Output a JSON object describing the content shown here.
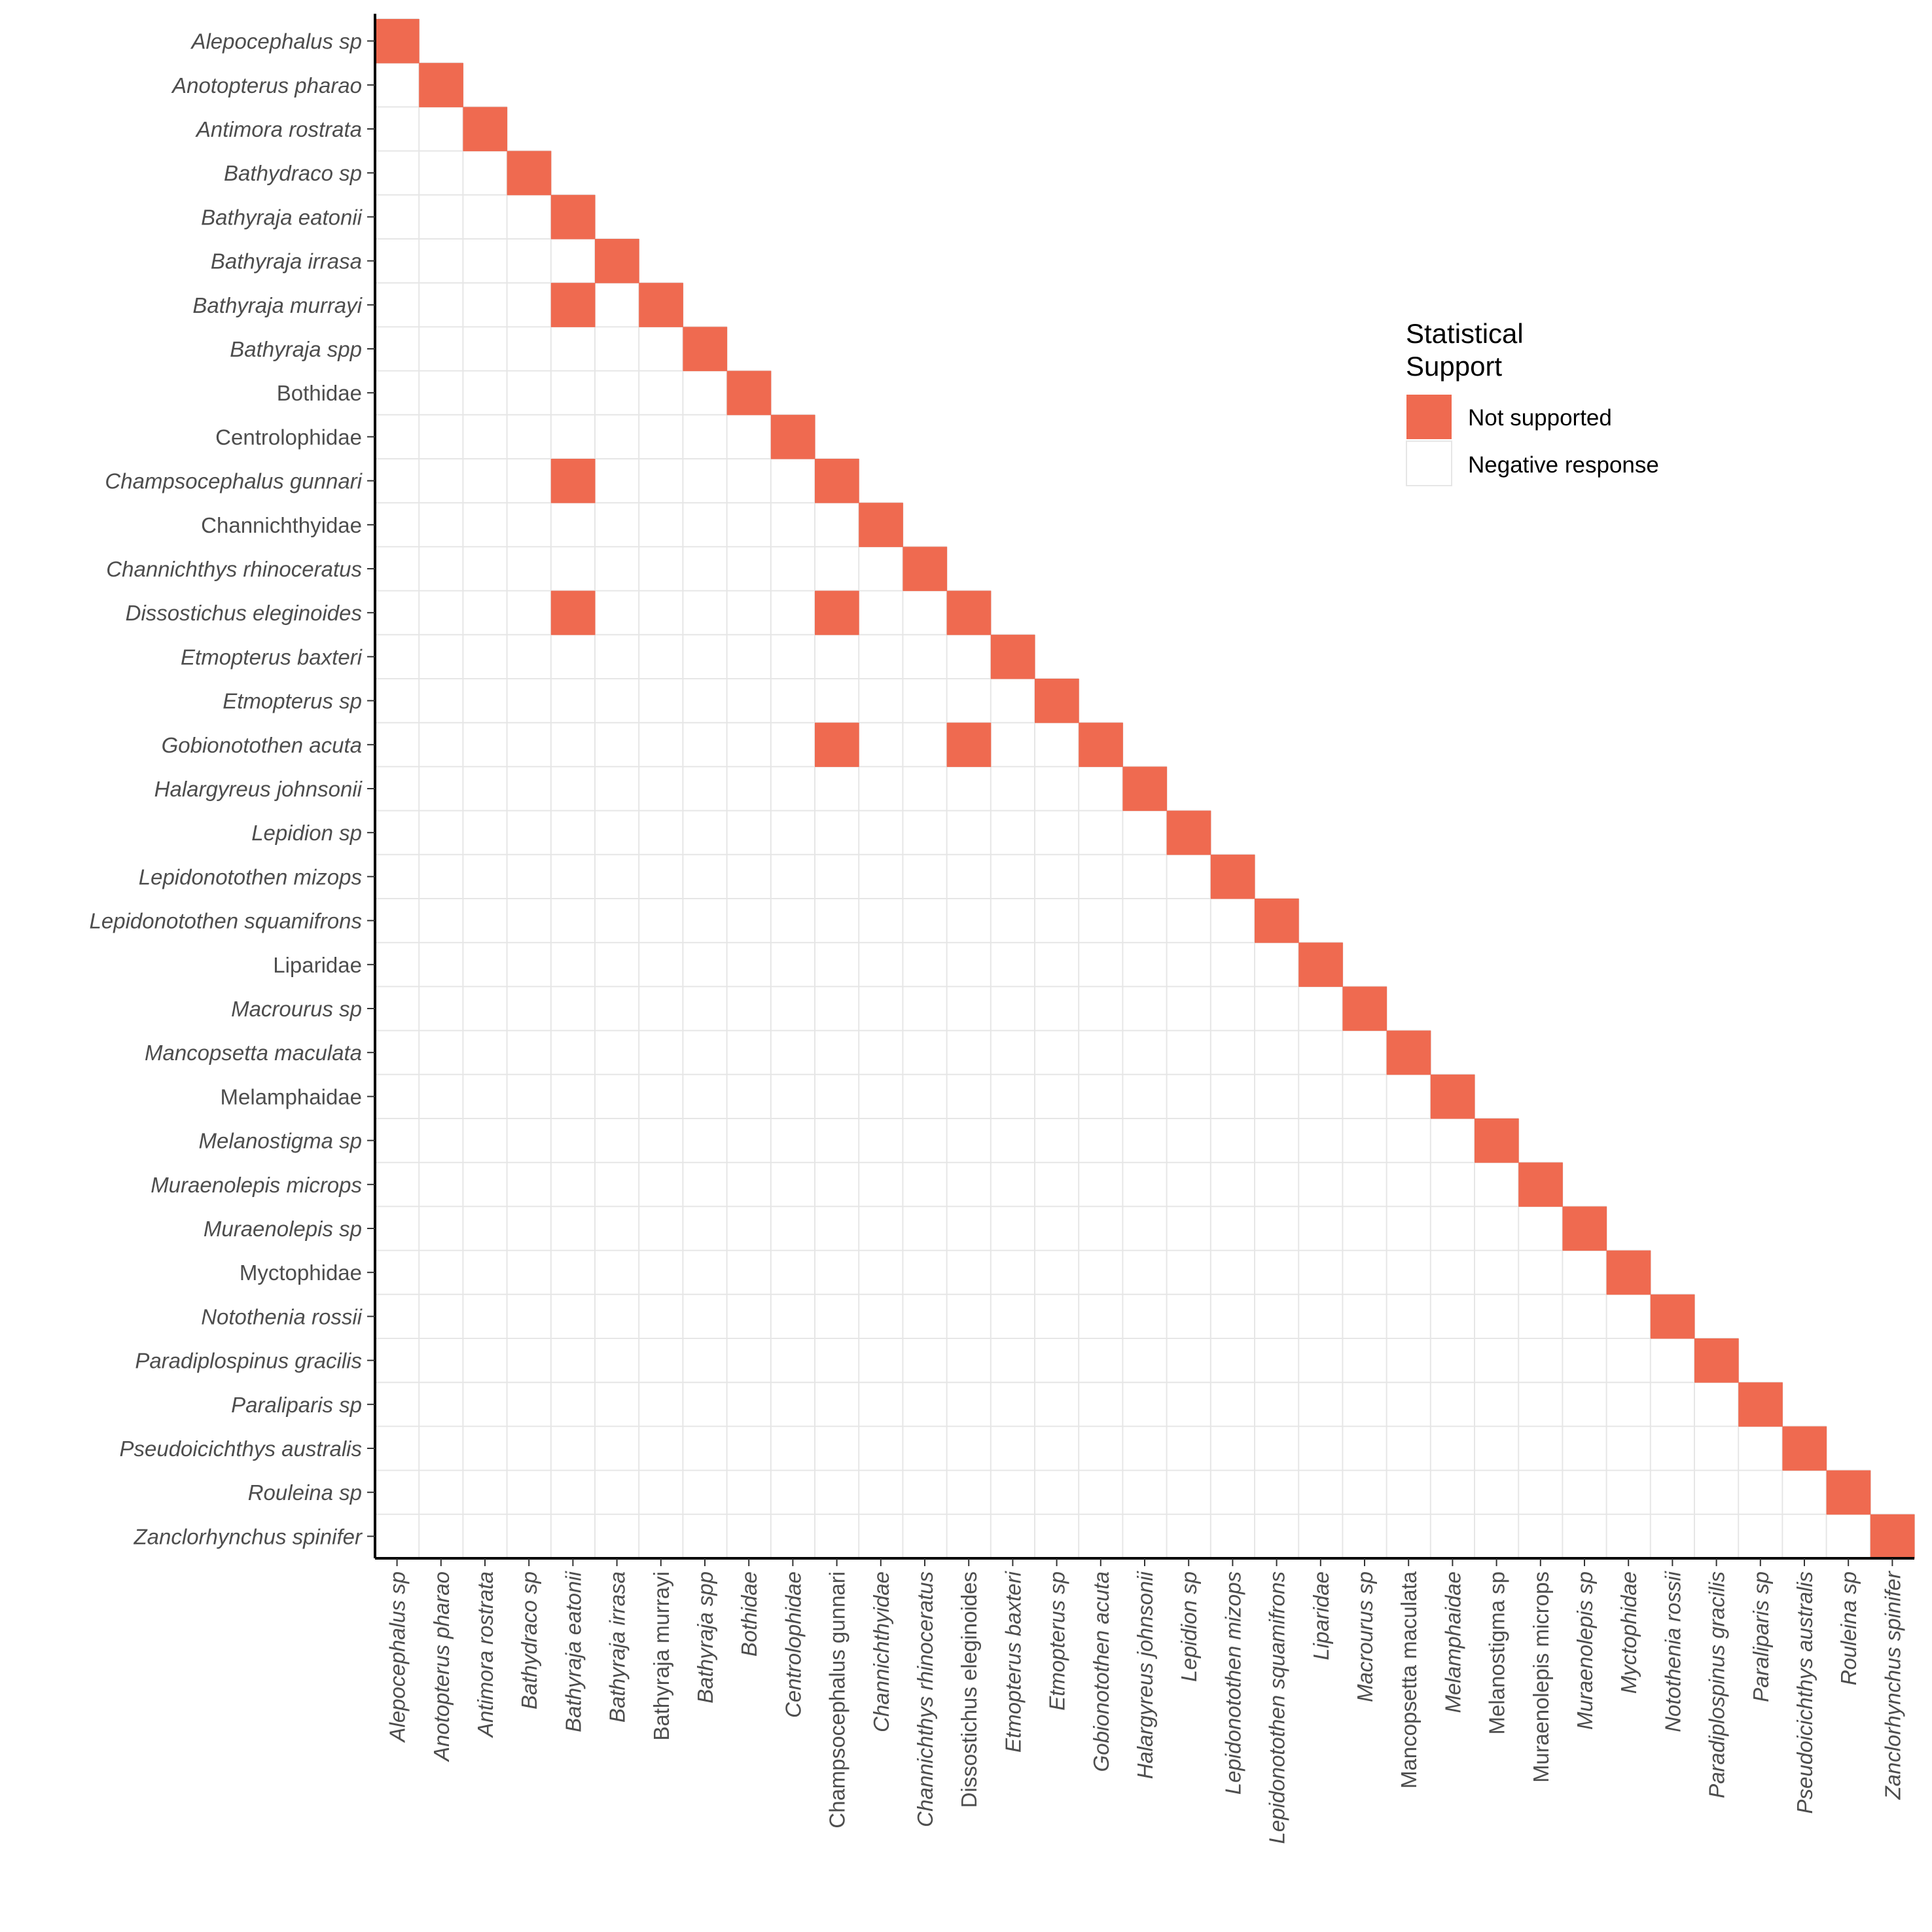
{
  "chart_data": {
    "type": "heatmap",
    "categories": [
      "Alepocephalus sp",
      "Anotopterus pharao",
      "Antimora rostrata",
      "Bathydraco sp",
      "Bathyraja eatonii",
      "Bathyraja irrasa",
      "Bathyraja murrayi",
      "Bathyraja spp",
      "Bothidae",
      "Centrolophidae",
      "Champsocephalus gunnari",
      "Channichthyidae",
      "Channichthys rhinoceratus",
      "Dissostichus eleginoides",
      "Etmopterus baxteri",
      "Etmopterus sp",
      "Gobionotothen acuta",
      "Halargyreus johnsonii",
      "Lepidion sp",
      "Lepidonotothen mizops",
      "Lepidonotothen squamifrons",
      "Liparidae",
      "Macrourus sp",
      "Mancopsetta maculata",
      "Melamphaidae",
      "Melanostigma sp",
      "Muraenolepis microps",
      "Muraenolepis sp",
      "Myctophidae",
      "Notothenia rossii",
      "Paradiplospinus gracilis",
      "Paraliparis sp",
      "Pseudoicichthys australis",
      "Rouleina sp",
      "Zanclorhynchus spinifer"
    ],
    "italic_y": [
      true,
      true,
      true,
      true,
      true,
      true,
      true,
      true,
      false,
      false,
      true,
      false,
      true,
      true,
      true,
      true,
      true,
      true,
      true,
      true,
      true,
      false,
      true,
      true,
      false,
      true,
      true,
      true,
      false,
      true,
      true,
      true,
      true,
      true,
      true
    ],
    "italic_x": [
      true,
      true,
      true,
      true,
      true,
      true,
      false,
      true,
      true,
      true,
      false,
      true,
      true,
      false,
      true,
      true,
      true,
      true,
      true,
      true,
      true,
      true,
      true,
      false,
      true,
      false,
      false,
      true,
      true,
      true,
      true,
      true,
      true,
      true,
      true
    ],
    "not_supported_cells": [
      [
        0,
        0
      ],
      [
        1,
        1
      ],
      [
        2,
        2
      ],
      [
        3,
        3
      ],
      [
        4,
        4
      ],
      [
        5,
        5
      ],
      [
        6,
        4
      ],
      [
        6,
        6
      ],
      [
        7,
        7
      ],
      [
        8,
        8
      ],
      [
        9,
        9
      ],
      [
        10,
        4
      ],
      [
        10,
        10
      ],
      [
        11,
        11
      ],
      [
        12,
        12
      ],
      [
        13,
        4
      ],
      [
        13,
        10
      ],
      [
        13,
        13
      ],
      [
        14,
        14
      ],
      [
        15,
        15
      ],
      [
        16,
        10
      ],
      [
        16,
        13
      ],
      [
        16,
        16
      ],
      [
        17,
        17
      ],
      [
        18,
        18
      ],
      [
        19,
        19
      ],
      [
        20,
        20
      ],
      [
        21,
        21
      ],
      [
        22,
        22
      ],
      [
        23,
        23
      ],
      [
        24,
        24
      ],
      [
        25,
        25
      ],
      [
        26,
        26
      ],
      [
        27,
        27
      ],
      [
        28,
        28
      ],
      [
        29,
        29
      ],
      [
        30,
        30
      ],
      [
        31,
        31
      ],
      [
        32,
        32
      ],
      [
        33,
        33
      ],
      [
        34,
        34
      ]
    ],
    "legend": {
      "title": [
        "Statistical",
        "Support"
      ],
      "position": "right",
      "entries": [
        {
          "label": "Not supported",
          "color": "#ef6a50"
        },
        {
          "label": "Negative response",
          "color": "#ffffff"
        }
      ]
    },
    "colors": {
      "not_supported": "#ef6a50",
      "negative_response": "#ffffff",
      "grid": "#e6e6e6",
      "axis": "#000000"
    }
  }
}
